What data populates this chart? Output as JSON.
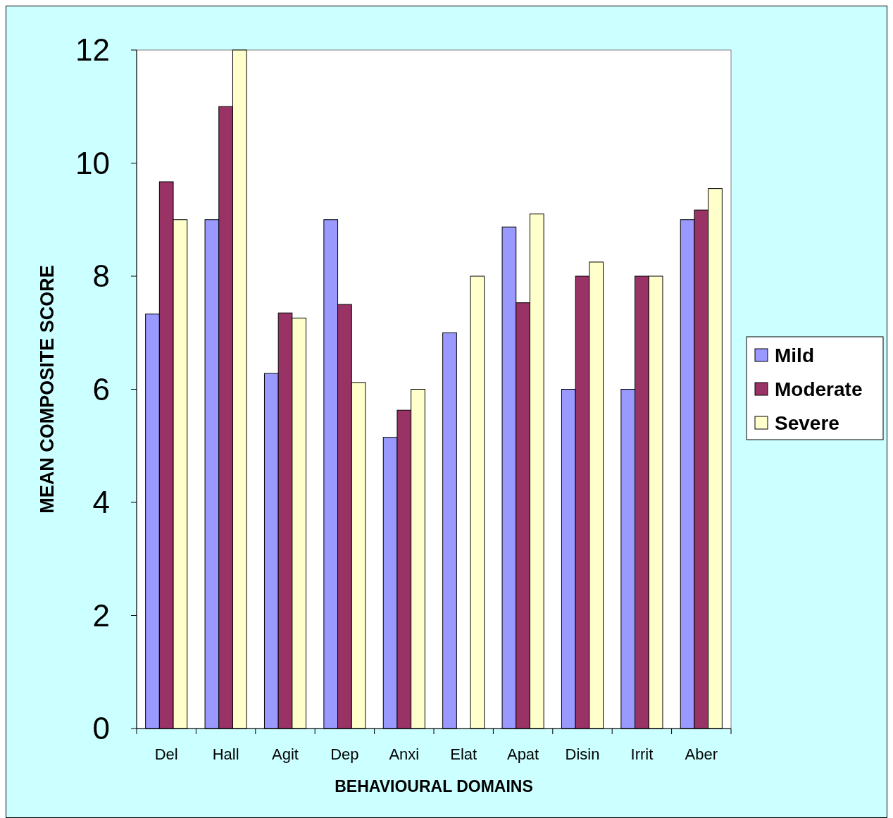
{
  "chart_data": {
    "type": "bar",
    "xlabel": "BEHAVIOURAL DOMAINS",
    "ylabel": "MEAN COMPOSITE SCORE",
    "categories": [
      "Del",
      "Hall",
      "Agit",
      "Dep",
      "Anxi",
      "Elat",
      "Apat",
      "Disin",
      "Irrit",
      "Aber"
    ],
    "series": [
      {
        "name": "Mild",
        "color": "#9999ff",
        "values": [
          7.33,
          9,
          6.28,
          9,
          5.15,
          7,
          8.87,
          6,
          6,
          9
        ]
      },
      {
        "name": "Moderate",
        "color": "#993366",
        "values": [
          9.67,
          11,
          7.35,
          7.5,
          5.63,
          null,
          7.53,
          8,
          8,
          9.17
        ]
      },
      {
        "name": "Severe",
        "color": "#ffffcc",
        "values": [
          9,
          12,
          7.26,
          6.12,
          6,
          8,
          9.1,
          8.25,
          8,
          9.55
        ]
      }
    ],
    "ylim": [
      0,
      12
    ],
    "yticks": [
      0,
      2,
      4,
      6,
      8,
      10,
      12
    ],
    "grid": false,
    "legend": "right"
  }
}
